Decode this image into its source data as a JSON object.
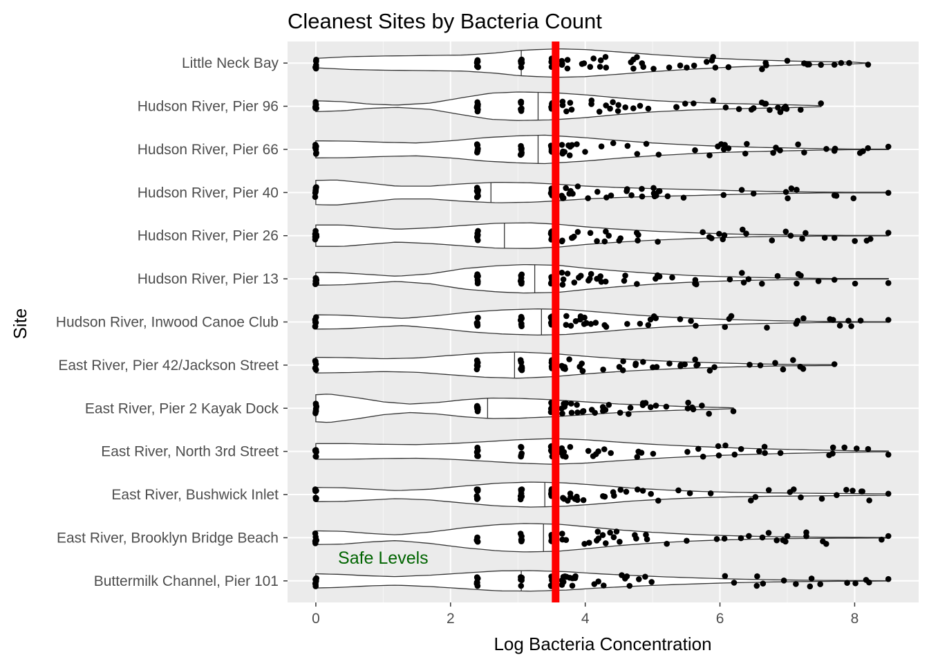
{
  "chart_data": {
    "type": "violin",
    "title": "Cleanest Sites by Bacteria Count",
    "xlabel": "Log Bacteria Concentration",
    "ylabel": "Site",
    "xlim": [
      -0.42,
      8.95
    ],
    "x_ticks": [
      0,
      2,
      4,
      6,
      8
    ],
    "grid": true,
    "orientation": "horizontal",
    "reference_line": {
      "x": 3.56,
      "color": "#ff0000"
    },
    "annotation": {
      "text": "Safe Levels",
      "x": 1.0,
      "site": "Buttermilk Channel, Pier 101",
      "color": "#006400"
    },
    "sites": [
      {
        "name": "Little Neck Bay",
        "median": 3.05,
        "max": 8.2,
        "outliers": [
          7.0,
          7.25,
          7.3,
          7.5,
          7.7,
          7.8,
          8.2
        ],
        "profile": [
          [
            0,
            0.33
          ],
          [
            0.5,
            0.45
          ],
          [
            1.0,
            0.5
          ],
          [
            1.6,
            0.53
          ],
          [
            2.2,
            0.56
          ],
          [
            2.7,
            0.72
          ],
          [
            3.0,
            0.88
          ],
          [
            3.3,
            0.95
          ],
          [
            3.6,
            1.0
          ],
          [
            4.0,
            0.95
          ],
          [
            4.5,
            0.78
          ],
          [
            5.0,
            0.6
          ],
          [
            5.5,
            0.45
          ],
          [
            6.0,
            0.32
          ],
          [
            6.5,
            0.22
          ],
          [
            7.0,
            0.15
          ],
          [
            7.5,
            0.1
          ],
          [
            8.0,
            0.06
          ],
          [
            8.2,
            0
          ]
        ]
      },
      {
        "name": "Hudson River, Pier 96",
        "median": 3.3,
        "max": 7.5,
        "outliers": [
          6.5,
          6.95,
          7.5
        ],
        "profile": [
          [
            0,
            0.38
          ],
          [
            0.4,
            0.32
          ],
          [
            0.8,
            0.15
          ],
          [
            1.2,
            0.08
          ],
          [
            1.7,
            0.22
          ],
          [
            2.2,
            0.62
          ],
          [
            2.6,
            0.92
          ],
          [
            3.0,
            1.0
          ],
          [
            3.5,
            0.96
          ],
          [
            4.0,
            0.8
          ],
          [
            4.5,
            0.58
          ],
          [
            5.0,
            0.4
          ],
          [
            5.5,
            0.28
          ],
          [
            6.0,
            0.2
          ],
          [
            6.5,
            0.15
          ],
          [
            7.0,
            0.1
          ],
          [
            7.5,
            0.04
          ]
        ]
      },
      {
        "name": "Hudson River, Pier 66",
        "median": 3.3,
        "max": 8.5,
        "outliers": [
          7.25,
          7.7,
          8.5
        ],
        "profile": [
          [
            0,
            0.6
          ],
          [
            0.5,
            0.58
          ],
          [
            1.0,
            0.5
          ],
          [
            1.5,
            0.45
          ],
          [
            2.0,
            0.6
          ],
          [
            2.5,
            0.82
          ],
          [
            3.0,
            0.95
          ],
          [
            3.4,
            1.0
          ],
          [
            4.0,
            0.82
          ],
          [
            4.5,
            0.62
          ],
          [
            5.0,
            0.45
          ],
          [
            5.5,
            0.32
          ],
          [
            6.0,
            0.22
          ],
          [
            6.5,
            0.15
          ],
          [
            7.0,
            0.1
          ],
          [
            7.5,
            0.05
          ],
          [
            8.0,
            0.02
          ],
          [
            8.5,
            0.02
          ]
        ]
      },
      {
        "name": "Hudson River, Pier 40",
        "median": 2.6,
        "max": 8.5,
        "outliers": [
          7.7,
          8.5
        ],
        "profile": [
          [
            0,
            0.85
          ],
          [
            0.3,
            0.88
          ],
          [
            0.7,
            0.7
          ],
          [
            1.2,
            0.45
          ],
          [
            1.7,
            0.45
          ],
          [
            2.2,
            0.62
          ],
          [
            2.7,
            0.72
          ],
          [
            3.2,
            0.68
          ],
          [
            3.6,
            0.58
          ],
          [
            4.0,
            0.45
          ],
          [
            4.5,
            0.35
          ],
          [
            5.0,
            0.28
          ],
          [
            5.5,
            0.22
          ],
          [
            6.0,
            0.16
          ],
          [
            6.5,
            0.1
          ],
          [
            7.0,
            0.06
          ],
          [
            7.5,
            0.03
          ],
          [
            8.0,
            0.02
          ],
          [
            8.5,
            0.02
          ]
        ]
      },
      {
        "name": "Hudson River, Pier 26",
        "median": 2.8,
        "max": 8.5,
        "outliers": [
          7.7,
          8.5
        ],
        "profile": [
          [
            0,
            0.75
          ],
          [
            0.4,
            0.75
          ],
          [
            0.8,
            0.6
          ],
          [
            1.2,
            0.45
          ],
          [
            1.7,
            0.55
          ],
          [
            2.2,
            0.72
          ],
          [
            2.7,
            0.88
          ],
          [
            3.2,
            0.9
          ],
          [
            3.6,
            0.8
          ],
          [
            4.0,
            0.62
          ],
          [
            4.5,
            0.45
          ],
          [
            5.0,
            0.32
          ],
          [
            5.5,
            0.22
          ],
          [
            6.0,
            0.14
          ],
          [
            6.5,
            0.08
          ],
          [
            7.0,
            0.05
          ],
          [
            7.5,
            0.03
          ],
          [
            8.0,
            0.02
          ],
          [
            8.5,
            0.02
          ]
        ]
      },
      {
        "name": "Hudson River, Pier 13",
        "median": 3.25,
        "max": 8.5,
        "outliers": [
          7.2,
          7.7,
          8.5
        ],
        "profile": [
          [
            0,
            0.45
          ],
          [
            0.4,
            0.42
          ],
          [
            0.8,
            0.3
          ],
          [
            1.2,
            0.18
          ],
          [
            1.7,
            0.35
          ],
          [
            2.2,
            0.72
          ],
          [
            2.7,
            0.92
          ],
          [
            3.1,
            1.0
          ],
          [
            3.6,
            0.95
          ],
          [
            4.0,
            0.75
          ],
          [
            4.5,
            0.55
          ],
          [
            5.0,
            0.38
          ],
          [
            5.5,
            0.25
          ],
          [
            6.0,
            0.16
          ],
          [
            6.5,
            0.1
          ],
          [
            7.0,
            0.06
          ],
          [
            7.5,
            0.03
          ],
          [
            8.0,
            0.02
          ],
          [
            8.5,
            0.02
          ]
        ]
      },
      {
        "name": "Hudson River, Inwood Canoe Club",
        "median": 3.35,
        "max": 8.5,
        "outliers": [
          7.95,
          8.5
        ],
        "profile": [
          [
            0,
            0.5
          ],
          [
            0.4,
            0.48
          ],
          [
            0.9,
            0.35
          ],
          [
            1.3,
            0.25
          ],
          [
            1.8,
            0.45
          ],
          [
            2.3,
            0.7
          ],
          [
            2.8,
            0.85
          ],
          [
            3.3,
            0.92
          ],
          [
            3.7,
            0.88
          ],
          [
            4.2,
            0.7
          ],
          [
            4.7,
            0.5
          ],
          [
            5.2,
            0.35
          ],
          [
            5.7,
            0.25
          ],
          [
            6.2,
            0.16
          ],
          [
            6.7,
            0.1
          ],
          [
            7.2,
            0.06
          ],
          [
            7.7,
            0.03
          ],
          [
            8.2,
            0.02
          ],
          [
            8.5,
            0.02
          ]
        ]
      },
      {
        "name": "East River, Pier 42/Jackson Street",
        "median": 2.95,
        "max": 7.7,
        "outliers": [
          6.6,
          7.7
        ],
        "profile": [
          [
            0,
            0.55
          ],
          [
            0.5,
            0.52
          ],
          [
            1.0,
            0.45
          ],
          [
            1.5,
            0.5
          ],
          [
            2.0,
            0.68
          ],
          [
            2.5,
            0.85
          ],
          [
            3.0,
            0.92
          ],
          [
            3.5,
            0.82
          ],
          [
            4.0,
            0.62
          ],
          [
            4.5,
            0.45
          ],
          [
            5.0,
            0.32
          ],
          [
            5.5,
            0.22
          ],
          [
            6.0,
            0.15
          ],
          [
            6.5,
            0.09
          ],
          [
            7.0,
            0.05
          ],
          [
            7.7,
            0.03
          ]
        ]
      },
      {
        "name": "East River, Pier 2 Kayak Dock ",
        "median": 2.55,
        "max": 6.2,
        "outliers": [
          6.2
        ],
        "profile": [
          [
            0,
            0.95
          ],
          [
            0.2,
            1.0
          ],
          [
            0.6,
            0.75
          ],
          [
            1.0,
            0.45
          ],
          [
            1.4,
            0.3
          ],
          [
            1.8,
            0.4
          ],
          [
            2.2,
            0.6
          ],
          [
            2.6,
            0.72
          ],
          [
            3.0,
            0.7
          ],
          [
            3.5,
            0.6
          ],
          [
            4.0,
            0.45
          ],
          [
            4.5,
            0.3
          ],
          [
            5.0,
            0.2
          ],
          [
            5.5,
            0.12
          ],
          [
            6.0,
            0.06
          ],
          [
            6.2,
            0.03
          ]
        ]
      },
      {
        "name": "East River, North 3rd Street",
        "median": 3.6,
        "max": 8.5,
        "outliers": [
          8.2,
          8.5
        ],
        "profile": [
          [
            0,
            0.55
          ],
          [
            0.5,
            0.55
          ],
          [
            1.0,
            0.5
          ],
          [
            1.5,
            0.48
          ],
          [
            2.0,
            0.55
          ],
          [
            2.5,
            0.68
          ],
          [
            3.0,
            0.82
          ],
          [
            3.5,
            0.9
          ],
          [
            4.0,
            0.82
          ],
          [
            4.5,
            0.65
          ],
          [
            5.0,
            0.5
          ],
          [
            5.5,
            0.38
          ],
          [
            6.0,
            0.28
          ],
          [
            6.5,
            0.2
          ],
          [
            7.0,
            0.14
          ],
          [
            7.5,
            0.09
          ],
          [
            8.0,
            0.05
          ],
          [
            8.5,
            0.03
          ]
        ]
      },
      {
        "name": "East River, Bushwick Inlet",
        "median": 3.4,
        "max": 8.5,
        "outliers": [
          8.1,
          8.5
        ],
        "profile": [
          [
            0,
            0.5
          ],
          [
            0.4,
            0.48
          ],
          [
            0.8,
            0.38
          ],
          [
            1.2,
            0.28
          ],
          [
            1.7,
            0.38
          ],
          [
            2.2,
            0.6
          ],
          [
            2.7,
            0.8
          ],
          [
            3.2,
            0.88
          ],
          [
            3.7,
            0.82
          ],
          [
            4.2,
            0.65
          ],
          [
            4.7,
            0.45
          ],
          [
            5.2,
            0.32
          ],
          [
            5.7,
            0.22
          ],
          [
            6.2,
            0.16
          ],
          [
            6.7,
            0.12
          ],
          [
            7.2,
            0.1
          ],
          [
            7.7,
            0.08
          ],
          [
            8.2,
            0.06
          ],
          [
            8.5,
            0.05
          ]
        ]
      },
      {
        "name": "East River, Brooklyn Bridge Beach ",
        "median": 3.38,
        "max": 8.5,
        "outliers": [
          8.4,
          8.5
        ],
        "profile": [
          [
            0,
            0.48
          ],
          [
            0.4,
            0.45
          ],
          [
            0.8,
            0.3
          ],
          [
            1.2,
            0.2
          ],
          [
            1.7,
            0.4
          ],
          [
            2.2,
            0.7
          ],
          [
            2.7,
            0.92
          ],
          [
            3.1,
            1.0
          ],
          [
            3.6,
            0.95
          ],
          [
            4.0,
            0.78
          ],
          [
            4.5,
            0.55
          ],
          [
            5.0,
            0.38
          ],
          [
            5.5,
            0.25
          ],
          [
            6.0,
            0.16
          ],
          [
            6.5,
            0.1
          ],
          [
            7.0,
            0.06
          ],
          [
            7.5,
            0.04
          ],
          [
            8.0,
            0.03
          ],
          [
            8.5,
            0.02
          ]
        ]
      },
      {
        "name": "Buttermilk Channel, Pier 101",
        "median": 3.05,
        "max": 8.5,
        "outliers": [
          6.95,
          8.5
        ],
        "profile": [
          [
            0,
            0.5
          ],
          [
            0.4,
            0.45
          ],
          [
            0.8,
            0.35
          ],
          [
            1.2,
            0.3
          ],
          [
            1.7,
            0.4
          ],
          [
            2.2,
            0.55
          ],
          [
            2.7,
            0.7
          ],
          [
            3.2,
            0.72
          ],
          [
            3.7,
            0.65
          ],
          [
            4.2,
            0.5
          ],
          [
            4.7,
            0.38
          ],
          [
            5.2,
            0.28
          ],
          [
            5.7,
            0.2
          ],
          [
            6.2,
            0.13
          ],
          [
            6.7,
            0.08
          ],
          [
            7.2,
            0.05
          ],
          [
            7.7,
            0.03
          ],
          [
            8.2,
            0.02
          ],
          [
            8.5,
            0.01
          ]
        ]
      }
    ]
  }
}
